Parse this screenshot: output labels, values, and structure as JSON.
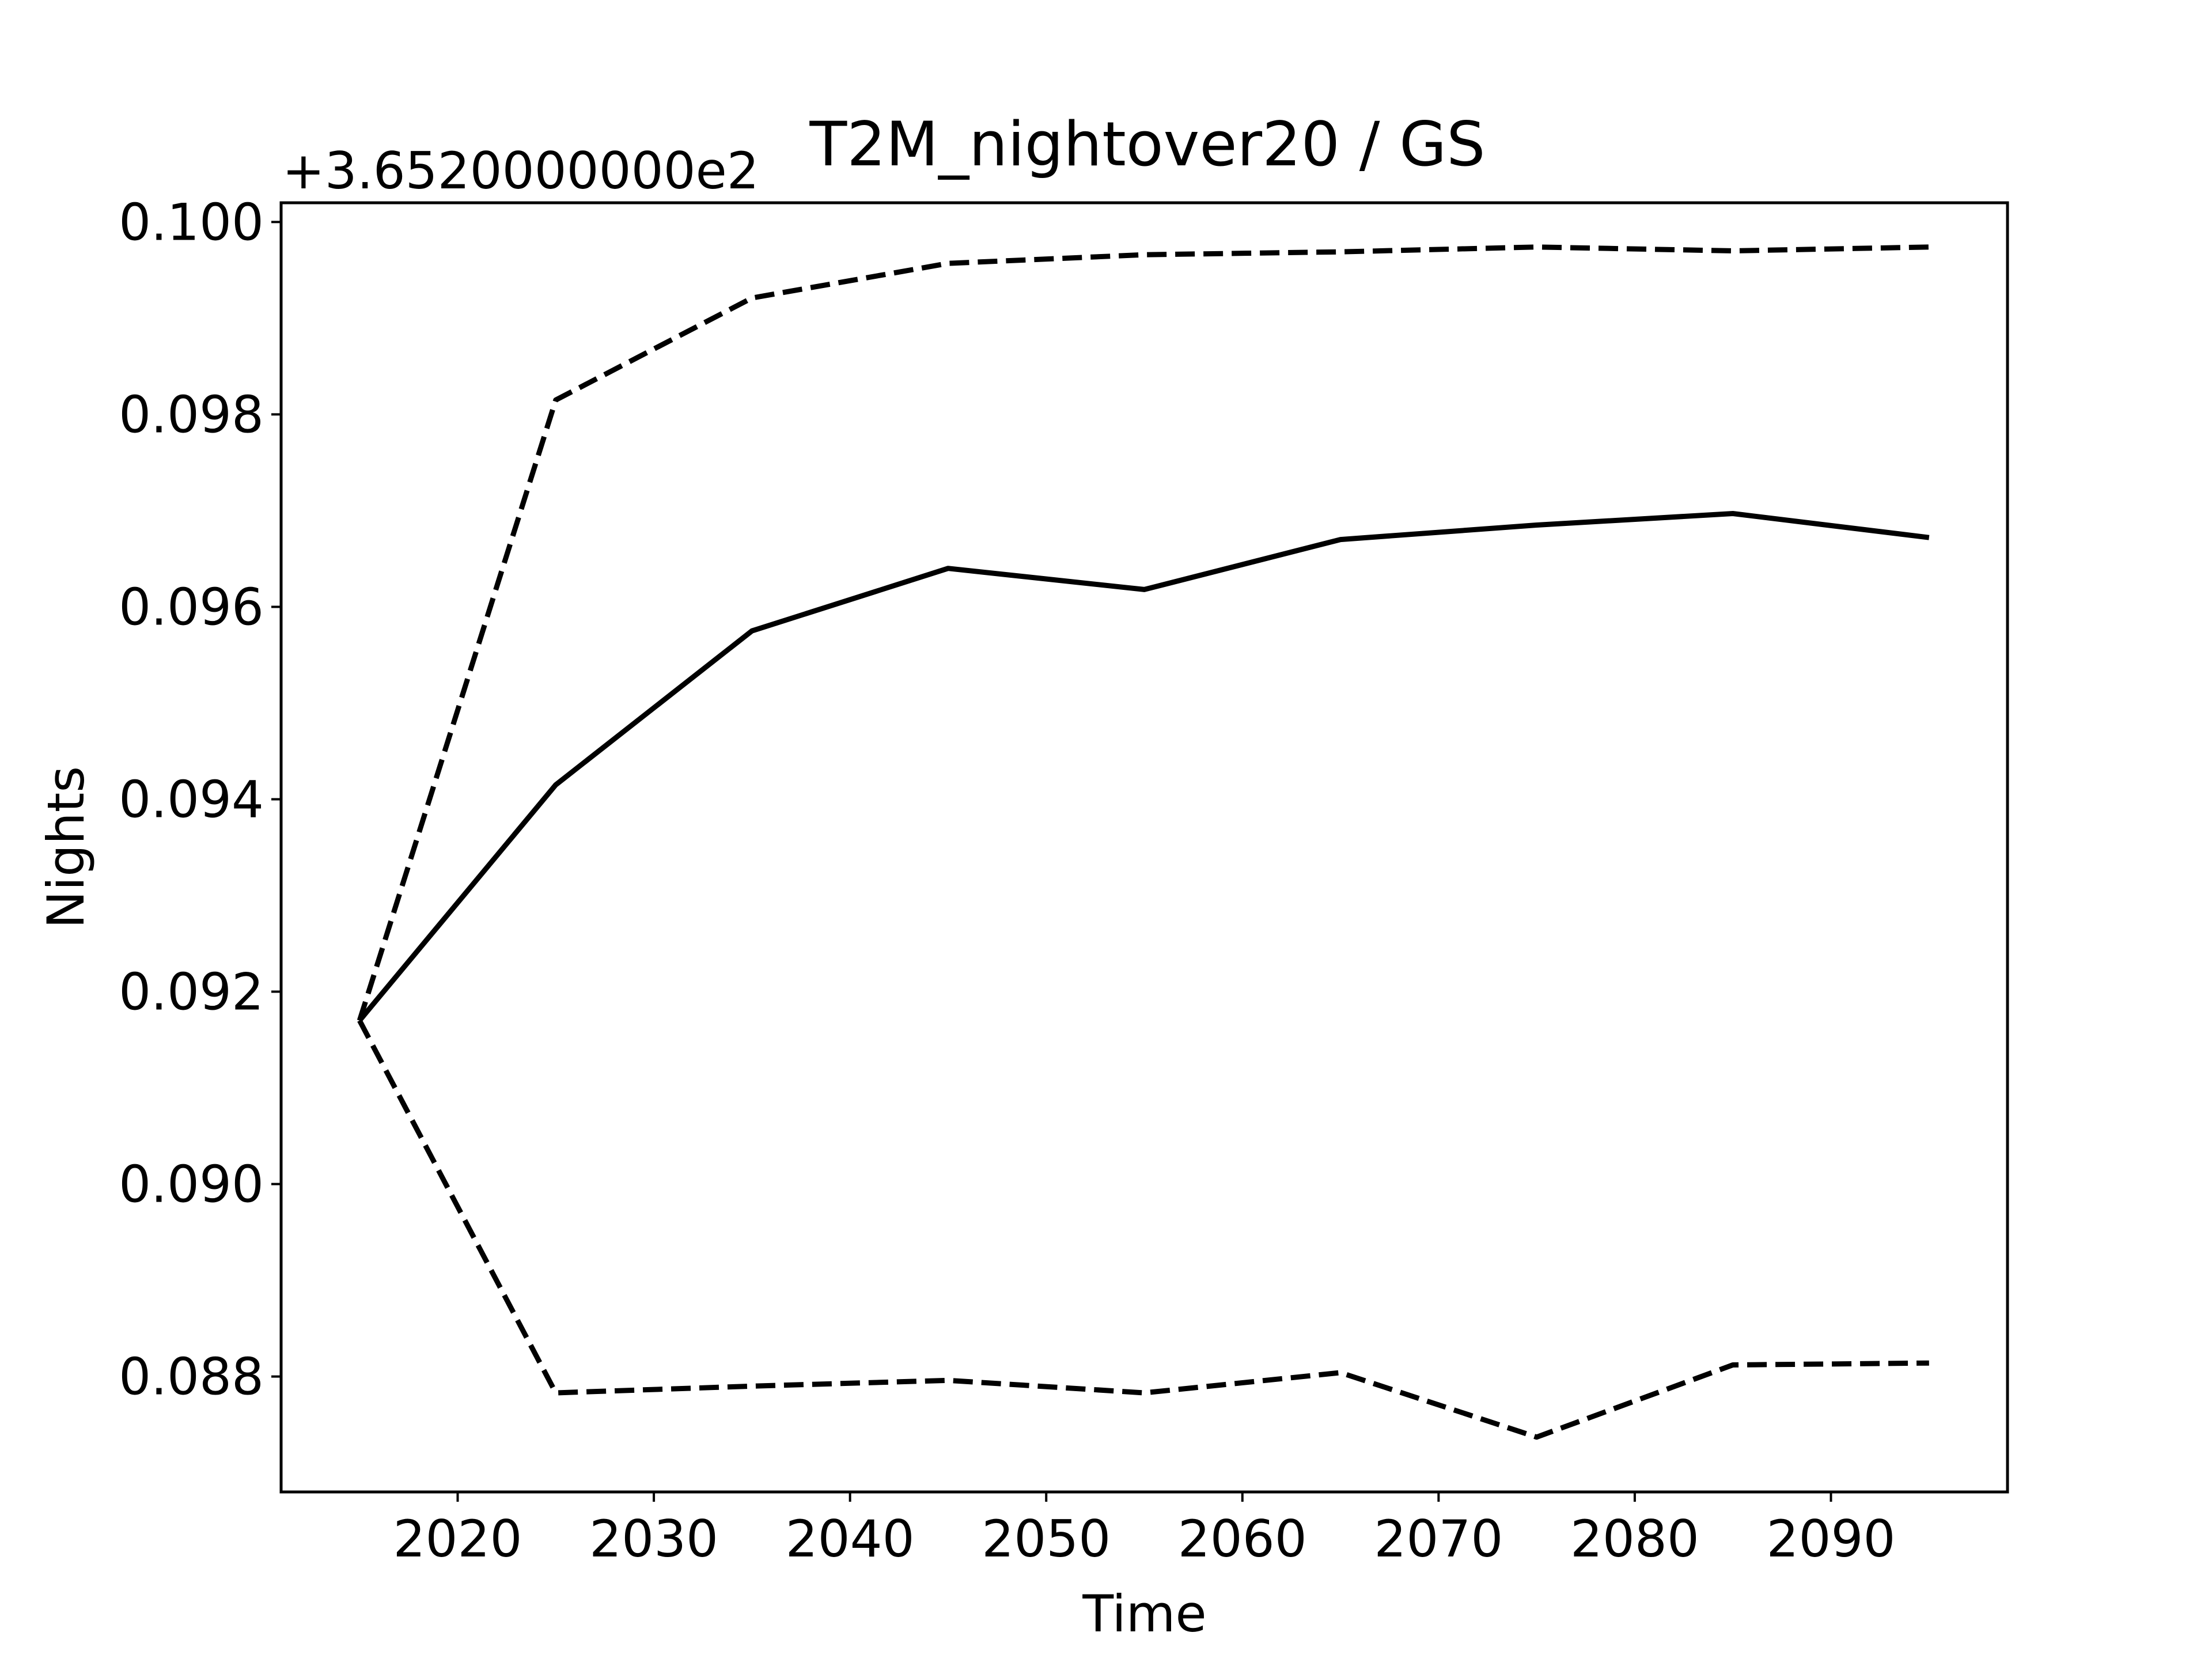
{
  "chart_data": {
    "type": "line",
    "title": "T2M_nightover20 / GS",
    "xlabel": "Time",
    "ylabel": "Nights",
    "y_offset_label": "+3.6520000000e2",
    "x": [
      2015,
      2025,
      2035,
      2045,
      2055,
      2065,
      2075,
      2085,
      2095
    ],
    "xlim": [
      2011,
      2099
    ],
    "ylim": [
      0.0868,
      0.1002
    ],
    "x_ticks": [
      2020,
      2030,
      2040,
      2050,
      2060,
      2070,
      2080,
      2090
    ],
    "x_tick_labels": [
      "2020",
      "2030",
      "2040",
      "2050",
      "2060",
      "2070",
      "2080",
      "2090"
    ],
    "y_ticks": [
      0.088,
      0.09,
      0.092,
      0.094,
      0.096,
      0.098,
      0.1
    ],
    "y_tick_labels": [
      "0.088",
      "0.090",
      "0.092",
      "0.094",
      "0.096",
      "0.098",
      "0.100"
    ],
    "grid": false,
    "legend": "none",
    "series": [
      {
        "style": "solid",
        "color": "#000000",
        "values": [
          0.0917,
          0.09415,
          0.09575,
          0.0964,
          0.09618,
          0.0967,
          0.09685,
          0.09697,
          0.09672
        ]
      },
      {
        "style": "dashed",
        "color": "#000000",
        "values": [
          0.0917,
          0.09815,
          0.09921,
          0.09957,
          0.09966,
          0.09969,
          0.09974,
          0.0997,
          0.09974
        ]
      },
      {
        "style": "dashed",
        "color": "#000000",
        "values": [
          0.0917,
          0.08783,
          0.0879,
          0.08796,
          0.08783,
          0.08804,
          0.08737,
          0.08812,
          0.08814
        ]
      }
    ]
  }
}
